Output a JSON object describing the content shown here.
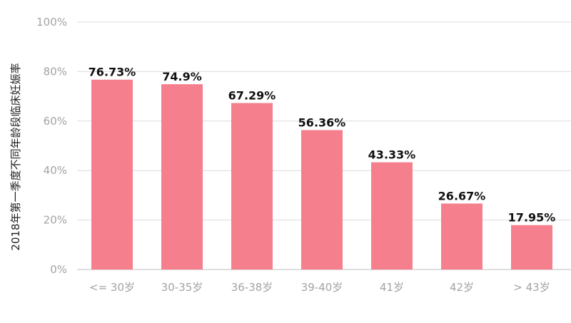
{
  "chart_data": {
    "type": "bar",
    "ylabel": "2018年第一季度不同年龄段临床妊娠率",
    "xlabel": "",
    "categories": [
      "<= 30岁",
      "30-35岁",
      "36-38岁",
      "39-40岁",
      "41岁",
      "42岁",
      "> 43岁"
    ],
    "values": [
      76.73,
      74.9,
      67.29,
      56.36,
      43.33,
      26.67,
      17.95
    ],
    "value_labels": [
      "76.73%",
      "74.9%",
      "67.29%",
      "56.36%",
      "43.33%",
      "26.67%",
      "17.95%"
    ],
    "ylim": [
      0,
      100
    ],
    "y_ticks": [
      0,
      20,
      40,
      60,
      80,
      100
    ],
    "y_tick_labels": [
      "0%",
      "20%",
      "40%",
      "60%",
      "80%",
      "100%"
    ],
    "grid": true,
    "legend": "none",
    "bar_color": "#f57f8d"
  }
}
